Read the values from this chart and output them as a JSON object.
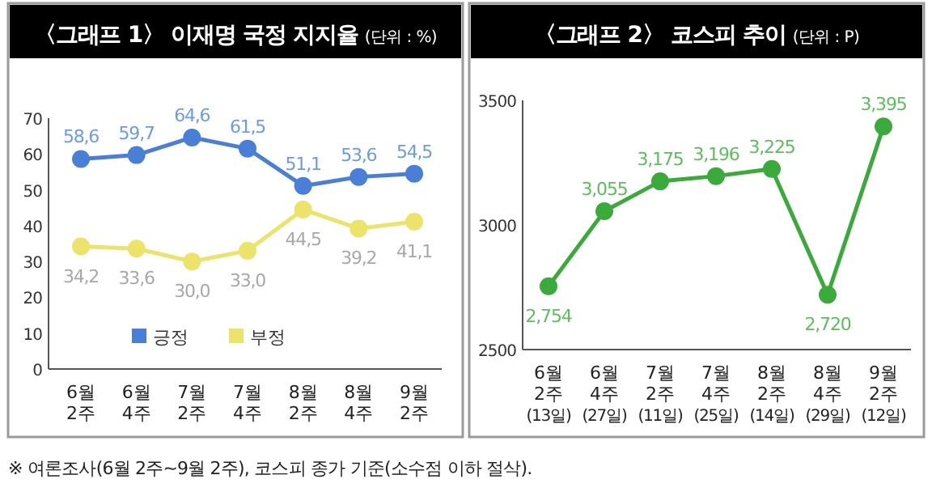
{
  "chart_data": [
    {
      "type": "line",
      "title": "〈그래프 1〉 이재명 국정 지지율",
      "subtitle": "(단위 : %)",
      "categories": [
        "6월\n2주",
        "6월\n4주",
        "7월\n2주",
        "7월\n4주",
        "8월\n2주",
        "8월\n4주",
        "9월\n2주"
      ],
      "series": [
        {
          "name": "긍정",
          "color": "#4a7fd8",
          "values": [
            58.6,
            59.7,
            64.6,
            61.5,
            51.1,
            53.6,
            54.5
          ],
          "value_labels": [
            "58,6",
            "59,7",
            "64,6",
            "61,5",
            "51,1",
            "53,6",
            "54,5"
          ]
        },
        {
          "name": "부정",
          "color": "#ece36a",
          "values": [
            34.2,
            33.6,
            30.0,
            33.0,
            44.5,
            39.2,
            41.1
          ],
          "value_labels": [
            "34,2",
            "33,6",
            "30,0",
            "33,0",
            "44,5",
            "39,2",
            "41,1"
          ]
        }
      ],
      "ylim": [
        0,
        70
      ],
      "yticks": [
        0,
        10,
        20,
        30,
        40,
        50,
        60,
        70
      ],
      "legend": "bottom",
      "marker": "circle",
      "annotations": [
        "※ 여론조사(6월 2주~9월 2주), 코스피 종가 기준(소수점 이하 절삭)."
      ]
    },
    {
      "type": "line",
      "title": "〈그래프 2〉 코스피 추이",
      "subtitle": "(단위 : P)",
      "categories": [
        "6월\n2주\n(13일)",
        "6월\n4주\n(27일)",
        "7월\n2주\n(11일)",
        "7월\n4주\n(25일)",
        "8월\n2주\n(14일)",
        "8월\n4주\n(29일)",
        "9월\n2주\n(12일)"
      ],
      "color": "#3aaa3a",
      "values": [
        2754,
        3055,
        3175,
        3196,
        3225,
        2720,
        3395
      ],
      "value_labels": [
        "2,754",
        "3,055",
        "3,175",
        "3,196",
        "3,225",
        "2,720",
        "3,395"
      ],
      "ylim": [
        2500,
        3500
      ],
      "yticks": [
        2500,
        3000,
        3500
      ],
      "marker": "circle"
    }
  ]
}
